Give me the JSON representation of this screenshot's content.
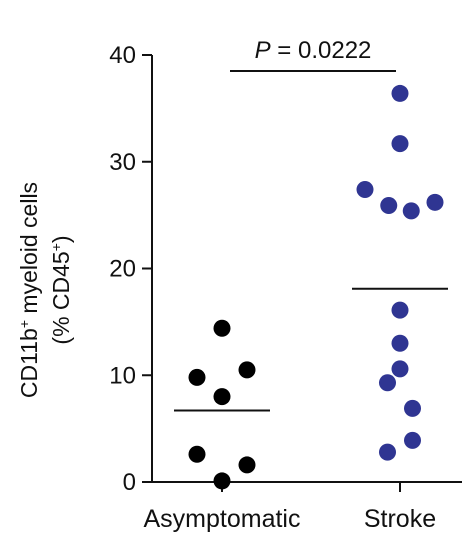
{
  "chart_data": {
    "type": "scatter",
    "title": "",
    "ylabel_line1": "CD11b",
    "ylabel_line1_sup": "+",
    "ylabel_line1_rest": " myeloid cells",
    "ylabel_line2": "(% CD45",
    "ylabel_line2_sup": "+",
    "ylabel_line2_end": ")",
    "ylim": [
      0,
      40
    ],
    "yticks": [
      "0",
      "10",
      "20",
      "30",
      "40"
    ],
    "categories": [
      "Asymptomatic",
      "Stroke"
    ],
    "series": [
      {
        "category": "Asymptomatic",
        "color": "#000000",
        "mean": 6.7,
        "points": [
          {
            "jitter": 0,
            "y": 14.4
          },
          {
            "jitter": -1,
            "y": 9.8
          },
          {
            "jitter": 1,
            "y": 10.5
          },
          {
            "jitter": 0,
            "y": 8.0
          },
          {
            "jitter": -1,
            "y": 2.6
          },
          {
            "jitter": 1,
            "y": 1.6
          },
          {
            "jitter": 0,
            "y": 0.1
          }
        ]
      },
      {
        "category": "Stroke",
        "color": "#2f3592",
        "mean": 18.1,
        "points": [
          {
            "jitter": 0,
            "y": 36.4
          },
          {
            "jitter": 0,
            "y": 31.7
          },
          {
            "jitter": -1.4,
            "y": 27.4
          },
          {
            "jitter": -0.45,
            "y": 25.9
          },
          {
            "jitter": 0.45,
            "y": 25.4
          },
          {
            "jitter": 1.4,
            "y": 26.2
          },
          {
            "jitter": 0,
            "y": 16.1
          },
          {
            "jitter": 0,
            "y": 13.0
          },
          {
            "jitter": 0,
            "y": 10.6
          },
          {
            "jitter": -0.5,
            "y": 9.3
          },
          {
            "jitter": 0.5,
            "y": 6.9
          },
          {
            "jitter": 0.5,
            "y": 3.9
          },
          {
            "jitter": -0.5,
            "y": 2.8
          }
        ]
      }
    ],
    "annotation": {
      "p_label": "P",
      "p_text": " = 0.0222"
    }
  }
}
